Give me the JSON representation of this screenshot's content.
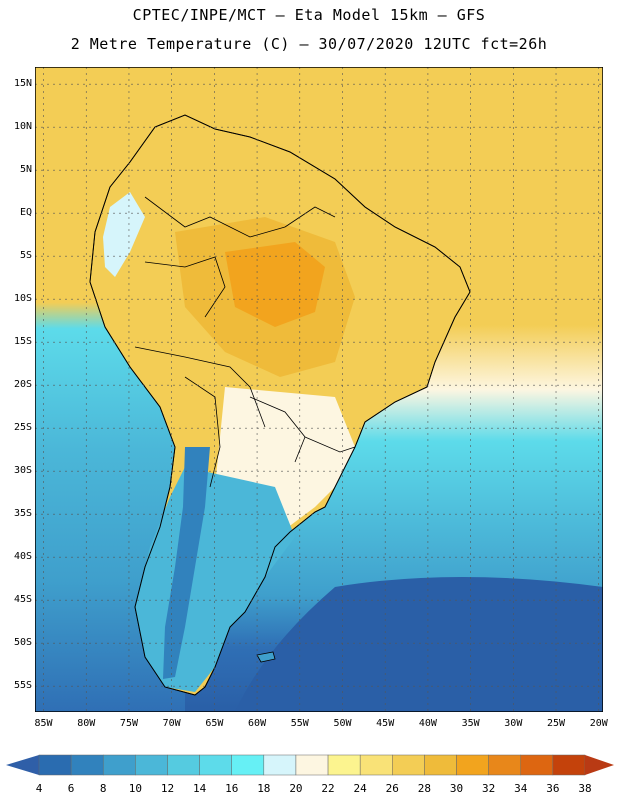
{
  "title_line1": "CPTEC/INPE/MCT –  Eta Model 15km – GFS",
  "title_line2": "2 Metre Temperature (C) – 30/07/2020 12UTC fct=26h",
  "map": {
    "lon_range": [
      -86,
      -19.5
    ],
    "lat_range": [
      -58,
      17
    ],
    "lat_labels": [
      "15N",
      "10N",
      "5N",
      "EQ",
      "5S",
      "10S",
      "15S",
      "20S",
      "25S",
      "30S",
      "35S",
      "40S",
      "45S",
      "50S",
      "55S"
    ],
    "lat_values": [
      15,
      10,
      5,
      0,
      -5,
      -10,
      -15,
      -20,
      -25,
      -30,
      -35,
      -40,
      -45,
      -50,
      -55
    ],
    "lon_labels": [
      "85W",
      "80W",
      "75W",
      "70W",
      "65W",
      "60W",
      "55W",
      "50W",
      "45W",
      "40W",
      "35W",
      "30W",
      "25W",
      "20W"
    ],
    "lon_values": [
      -85,
      -80,
      -75,
      -70,
      -65,
      -60,
      -55,
      -50,
      -45,
      -40,
      -35,
      -30,
      -25,
      -20
    ]
  },
  "colorbar": {
    "labels": [
      "4",
      "6",
      "8",
      "10",
      "12",
      "14",
      "16",
      "18",
      "20",
      "22",
      "24",
      "26",
      "28",
      "30",
      "32",
      "34",
      "36",
      "38"
    ],
    "colors": [
      "#2a6cb0",
      "#3182bd",
      "#3f9fcc",
      "#4bb7d8",
      "#55cbe0",
      "#5ddbea",
      "#66f0f5",
      "#d6f5fb",
      "#fdf6e1",
      "#fcf48f",
      "#f9e277",
      "#f3cd55",
      "#efbb3a",
      "#f2a41e",
      "#e8871a",
      "#dd6611",
      "#c4420b"
    ],
    "low_color": "#2f5fa8",
    "high_color": "#b93a14"
  },
  "colors": {
    "ocean_north": "#f3cd55",
    "ocean_south_deep": "#2a5fa7",
    "border": "#000000"
  }
}
